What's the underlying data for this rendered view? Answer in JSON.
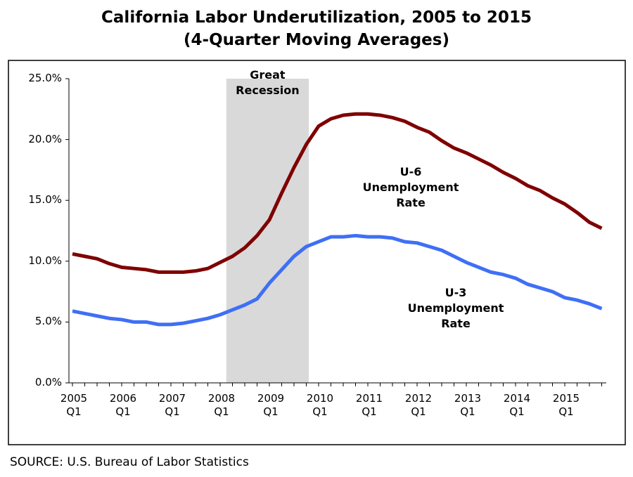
{
  "chart_data": {
    "type": "line",
    "title": "California Labor Underutilization, 2005 to 2015",
    "subtitle": "(4-Quarter Moving Averages)",
    "source": "SOURCE: U.S. Bureau of Labor Statistics",
    "categories": [
      "2005 Q1",
      null,
      null,
      null,
      "2006 Q1",
      null,
      null,
      null,
      "2007 Q1",
      null,
      null,
      null,
      "2008 Q1",
      null,
      null,
      null,
      "2009 Q1",
      null,
      null,
      null,
      "2010 Q1",
      null,
      null,
      null,
      "2011 Q1",
      null,
      null,
      null,
      "2012 Q1",
      null,
      null,
      null,
      "2013 Q1",
      null,
      null,
      null,
      "2014 Q1",
      null,
      null,
      null,
      "2015 Q1",
      null,
      null,
      null
    ],
    "series": [
      {
        "name": "U-6 Unemployment Rate",
        "color": "#7f0000",
        "values": [
          10.6,
          10.4,
          10.2,
          9.8,
          9.5,
          9.4,
          9.3,
          9.1,
          9.1,
          9.1,
          9.2,
          9.4,
          9.9,
          10.4,
          11.1,
          12.1,
          13.4,
          15.6,
          17.7,
          19.6,
          21.1,
          21.7,
          22.0,
          22.1,
          22.1,
          22.0,
          21.8,
          21.5,
          21.0,
          20.6,
          19.9,
          19.3,
          18.9,
          18.4,
          17.9,
          17.3,
          16.8,
          16.2,
          15.8,
          15.2,
          14.7,
          14.0,
          13.2,
          12.7
        ]
      },
      {
        "name": "U-3 Unemployment Rate",
        "color": "#3f6ff5",
        "values": [
          5.9,
          5.7,
          5.5,
          5.3,
          5.2,
          5.0,
          5.0,
          4.8,
          4.8,
          4.9,
          5.1,
          5.3,
          5.6,
          6.0,
          6.4,
          6.9,
          8.2,
          9.3,
          10.4,
          11.2,
          11.6,
          12.0,
          12.0,
          12.1,
          12.0,
          12.0,
          11.9,
          11.6,
          11.5,
          11.2,
          10.9,
          10.4,
          9.9,
          9.5,
          9.1,
          8.9,
          8.6,
          8.1,
          7.8,
          7.5,
          7.0,
          6.8,
          6.5,
          6.1
        ]
      }
    ],
    "shaded_region": {
      "label": "Great Recession",
      "start": 12.5,
      "end": 19.2,
      "color": "#d9d9d9"
    },
    "ylim": [
      0,
      25
    ],
    "yticks": [
      {
        "value": 0,
        "label": "0.0%"
      },
      {
        "value": 5,
        "label": "5.0%"
      },
      {
        "value": 10,
        "label": "10.0%"
      },
      {
        "value": 15,
        "label": "15.0%"
      },
      {
        "value": 20,
        "label": "20.0%"
      },
      {
        "value": 25,
        "label": "25.0%"
      }
    ],
    "grid": false
  }
}
